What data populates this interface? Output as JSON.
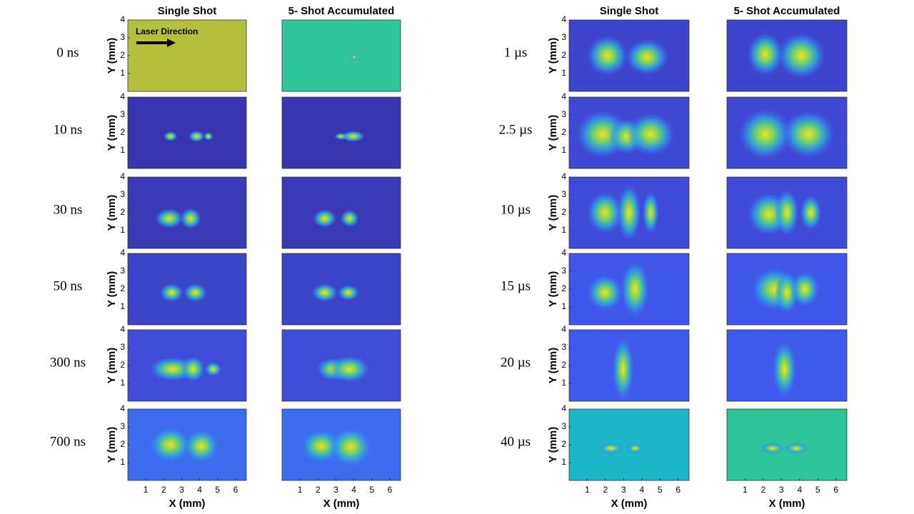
{
  "annotation": "Laser Direction",
  "groups": [
    {
      "column_titles": [
        "Single Shot",
        "5- Shot Accumulated"
      ],
      "y_label": "Y (mm)",
      "x_label": "X (mm)",
      "xlim": [
        0,
        6.6
      ],
      "ylim": [
        0,
        4
      ],
      "xticks": [
        1,
        2,
        3,
        4,
        5,
        6
      ],
      "yticks": [
        1,
        2,
        3,
        4
      ],
      "rows": [
        {
          "label": "0 ns",
          "colors": [
            "#b4c03c",
            "#2fc49a"
          ]
        },
        {
          "label": "10 ns",
          "colors": [
            "#3935ae",
            "#3935ae"
          ]
        },
        {
          "label": "30 ns",
          "colors": [
            "#3a3ab6",
            "#3a3ab6"
          ]
        },
        {
          "label": "50 ns",
          "colors": [
            "#3c45c8",
            "#3c45c8"
          ]
        },
        {
          "label": "300 ns",
          "colors": [
            "#3f4cd8",
            "#3f4cd8"
          ]
        },
        {
          "label": "700 ns",
          "colors": [
            "#3e6cef",
            "#3e6cef"
          ]
        }
      ]
    },
    {
      "column_titles": [
        "Single Shot",
        "5- Shot Accumulated"
      ],
      "y_label": "Y (mm)",
      "x_label": "X (mm)",
      "xlim": [
        0,
        6.6
      ],
      "ylim": [
        0,
        4
      ],
      "xticks": [
        1,
        2,
        3,
        4,
        5,
        6
      ],
      "yticks": [
        1,
        2,
        3,
        4
      ],
      "rows": [
        {
          "label": "1 µs",
          "colors": [
            "#3e44cc",
            "#3e44cc"
          ]
        },
        {
          "label": "2.5 µs",
          "colors": [
            "#3f48d4",
            "#3f48d4"
          ]
        },
        {
          "label": "10 µs",
          "colors": [
            "#3f4ad8",
            "#3f4ad8"
          ]
        },
        {
          "label": "15 µs",
          "colors": [
            "#3f56e8",
            "#3f56e8"
          ]
        },
        {
          "label": "20 µs",
          "colors": [
            "#3f5aea",
            "#3f5aea"
          ]
        },
        {
          "label": "40 µs",
          "colors": [
            "#1db6c8",
            "#2ec49a"
          ]
        }
      ]
    }
  ]
}
